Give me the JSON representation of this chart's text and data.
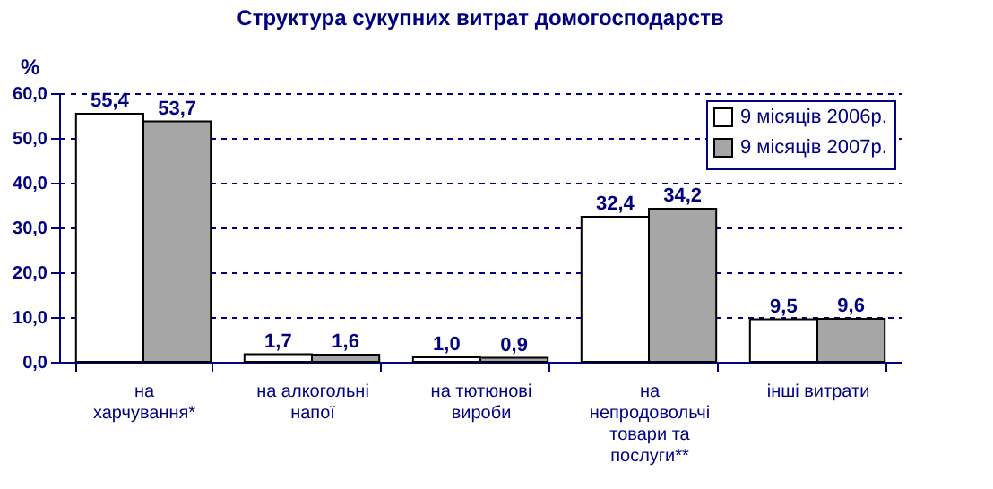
{
  "chart_data": {
    "type": "bar",
    "title": "Структура сукупних витрат домогосподарств",
    "ylabel": "%",
    "categories": [
      "на харчування*",
      "на алкогольні напої",
      "на тютюнові вироби",
      "на непродовольчі товари та послуги**",
      "інші витрати"
    ],
    "series": [
      {
        "name": "9 місяців 2006р.",
        "color": "#ffffff",
        "values": [
          55.4,
          1.7,
          1.0,
          32.4,
          9.5
        ],
        "value_labels": [
          "55,4",
          "1,7",
          "1,0",
          "32,4",
          "9,5"
        ]
      },
      {
        "name": "9 місяців 2007р.",
        "color": "#a6a6a6",
        "values": [
          53.7,
          1.6,
          0.9,
          34.2,
          9.6
        ],
        "value_labels": [
          "53,7",
          "1,6",
          "0,9",
          "34,2",
          "9,6"
        ]
      }
    ],
    "ylim": [
      0,
      60
    ],
    "yticks": [
      {
        "value": 0,
        "label": "0,0"
      },
      {
        "value": 10,
        "label": "10,0"
      },
      {
        "value": 20,
        "label": "20,0"
      },
      {
        "value": 30,
        "label": "30,0"
      },
      {
        "value": 40,
        "label": "40,0"
      },
      {
        "value": 50,
        "label": "50,0"
      },
      {
        "value": 60,
        "label": "60,0"
      }
    ],
    "grid": "y",
    "legend": "top right"
  }
}
